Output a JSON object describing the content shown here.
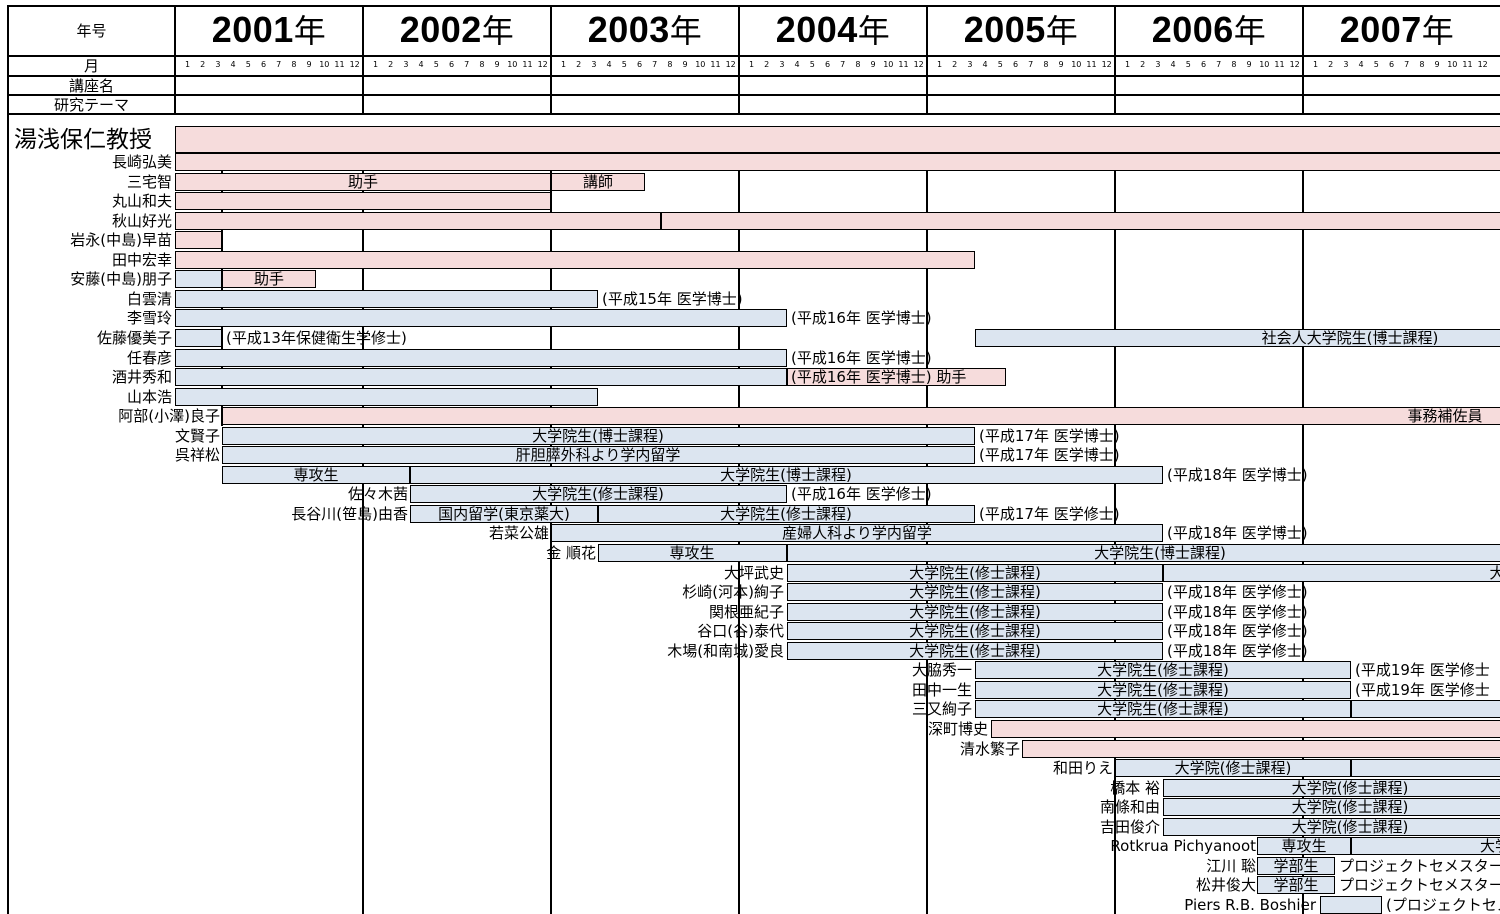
{
  "header": {
    "year_label": "年号",
    "month_label": "月",
    "course_label": "講座名",
    "theme_label": "研究テーマ",
    "years": [
      "2001",
      "2002",
      "2003",
      "2004",
      "2005",
      "2006",
      "2007"
    ],
    "year_suffix": "年",
    "months": [
      "1",
      "2",
      "3",
      "4",
      "5",
      "6",
      "7",
      "8",
      "9",
      "10",
      "11",
      "12"
    ]
  },
  "professor": "湯浅保仁教授",
  "rows": [
    {
      "name": "長崎弘美"
    },
    {
      "name": "三宅智",
      "labels": [
        "助手",
        "講師"
      ]
    },
    {
      "name": "丸山和夫"
    },
    {
      "name": "秋山好光"
    },
    {
      "name": "岩永(中島)早苗"
    },
    {
      "name": "田中宏幸"
    },
    {
      "name": "安藤(中島)朋子",
      "labels": [
        "助手"
      ]
    },
    {
      "name": "白雲清",
      "note": "(平成15年 医学博士)"
    },
    {
      "name": "李雪玲",
      "note": "(平成16年 医学博士)"
    },
    {
      "name": "佐藤優美子",
      "note": "(平成13年保健衛生学修士)",
      "labels": [
        "社会人大学院生(博士課程)"
      ]
    },
    {
      "name": "任春彦",
      "note": "(平成16年 医学博士)"
    },
    {
      "name": "酒井秀和",
      "note": "(平成16年 医学博士) 助手"
    },
    {
      "name": "山本浩"
    },
    {
      "name": "阿部(小澤)良子",
      "labels": [
        "事務補佐員"
      ]
    },
    {
      "name": "文賢子",
      "labels": [
        "大学院生(博士課程)"
      ],
      "note": "(平成17年 医学博士)"
    },
    {
      "name": "呉祥松",
      "labels": [
        "肝胆膵外科より学内留学"
      ],
      "note": "(平成17年 医学博士)"
    },
    {
      "name": "",
      "labels": [
        "専攻生",
        "大学院生(博士課程)"
      ],
      "note": "(平成18年 医学博士)"
    },
    {
      "name": "佐々木茜",
      "labels": [
        "大学院生(修士課程)"
      ],
      "note": "(平成16年 医学修士)"
    },
    {
      "name": "長谷川(笹島)由香",
      "labels": [
        "国内留学(東京薬大)",
        "大学院生(修士課程)"
      ],
      "note": "(平成17年 医学修士)"
    },
    {
      "name": "若菜公雄",
      "labels": [
        "産婦人科より学内留学"
      ],
      "note": "(平成18年 医学博士)"
    },
    {
      "name": "金 順花",
      "labels": [
        "専攻生",
        "大学院生(博士課程)"
      ]
    },
    {
      "name": "大坪武史",
      "labels": [
        "大学院生(修士課程)",
        "大"
      ]
    },
    {
      "name": "杉崎(河本)絢子",
      "labels": [
        "大学院生(修士課程)"
      ],
      "note": "(平成18年 医学修士)"
    },
    {
      "name": "関根亜紀子",
      "labels": [
        "大学院生(修士課程)"
      ],
      "note": "(平成18年 医学修士)"
    },
    {
      "name": "谷口(谷)泰代",
      "labels": [
        "大学院生(修士課程)"
      ],
      "note": "(平成18年 医学修士)"
    },
    {
      "name": "木場(和南城)愛良",
      "labels": [
        "大学院生(修士課程)"
      ],
      "note": "(平成18年 医学修士)"
    },
    {
      "name": "大脇秀一",
      "labels": [
        "大学院生(修士課程)"
      ],
      "note": "(平成19年 医学修士"
    },
    {
      "name": "田中一生",
      "labels": [
        "大学院生(修士課程)"
      ],
      "note": "(平成19年 医学修士"
    },
    {
      "name": "三又絢子",
      "labels": [
        "大学院生(修士課程)"
      ]
    },
    {
      "name": "深町博史"
    },
    {
      "name": "清水繁子"
    },
    {
      "name": "和田りえ",
      "labels": [
        "大学院(修士課程)"
      ]
    },
    {
      "name": "橋本 裕",
      "labels": [
        "大学院(修士課程)"
      ]
    },
    {
      "name": "南條和由",
      "labels": [
        "大学院(修士課程)"
      ]
    },
    {
      "name": "吉田俊介",
      "labels": [
        "大学院(修士課程)"
      ]
    },
    {
      "name": "Rotkrua Pichyanoot",
      "labels": [
        "専攻生",
        "大学"
      ]
    },
    {
      "name": "江川 聡",
      "labels": [
        "学部生",
        "プロジェクトセメスター"
      ]
    },
    {
      "name": "松井俊大",
      "labels": [
        "学部生",
        "プロジェクトセメスター"
      ]
    },
    {
      "name": "Piers R.B. Boshier",
      "labels": [
        "(プロジェクトセメ"
      ]
    }
  ],
  "colors": {
    "staff": "#f6dcdc",
    "student": "#dce5f0",
    "line": "#000000"
  }
}
